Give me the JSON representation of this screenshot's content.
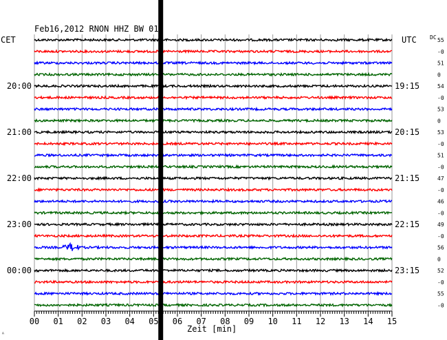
{
  "chart_data": {
    "type": "line",
    "title": "Feb16,2012   RNON HHZ BW 01",
    "xlabel": "Zeit [min]",
    "xlim": [
      0,
      15
    ],
    "x_ticks": [
      "00",
      "01",
      "02",
      "03",
      "04",
      "05",
      "06",
      "07",
      "08",
      "09",
      "10",
      "11",
      "12",
      "13",
      "14",
      "15"
    ],
    "left_axis_label": "CET",
    "right_axis_label": "UTC",
    "dc_label": "DC",
    "left_time_labels": [
      {
        "trace": 4,
        "label": "20:00"
      },
      {
        "trace": 8,
        "label": "21:00"
      },
      {
        "trace": 12,
        "label": "22:00"
      },
      {
        "trace": 16,
        "label": "23:00"
      },
      {
        "trace": 20,
        "label": "00:00"
      }
    ],
    "right_time_labels": [
      {
        "trace": 4,
        "label": "19:15"
      },
      {
        "trace": 8,
        "label": "20:15"
      },
      {
        "trace": 12,
        "label": "21:15"
      },
      {
        "trace": 16,
        "label": "22:15"
      },
      {
        "trace": 20,
        "label": "23:15"
      }
    ],
    "dc_values": [
      "55",
      "-0",
      "51",
      "0",
      "54",
      "-0",
      "53",
      "0",
      "53",
      "-0",
      "51",
      "-0",
      "47",
      "-0",
      "46",
      "-0",
      "49",
      "-0",
      "56",
      "0",
      "52",
      "-0",
      "55",
      "-0"
    ],
    "trace_colors": [
      "#000000",
      "#ff0000",
      "#0000ff",
      "#006400"
    ],
    "trace_count": 24,
    "event": {
      "trace": 18,
      "start_min": 1.1,
      "end_min": 2.0,
      "description": "small amplitude burst"
    },
    "marker_line_min": 5.3,
    "corner_mark": "ᴬ"
  }
}
